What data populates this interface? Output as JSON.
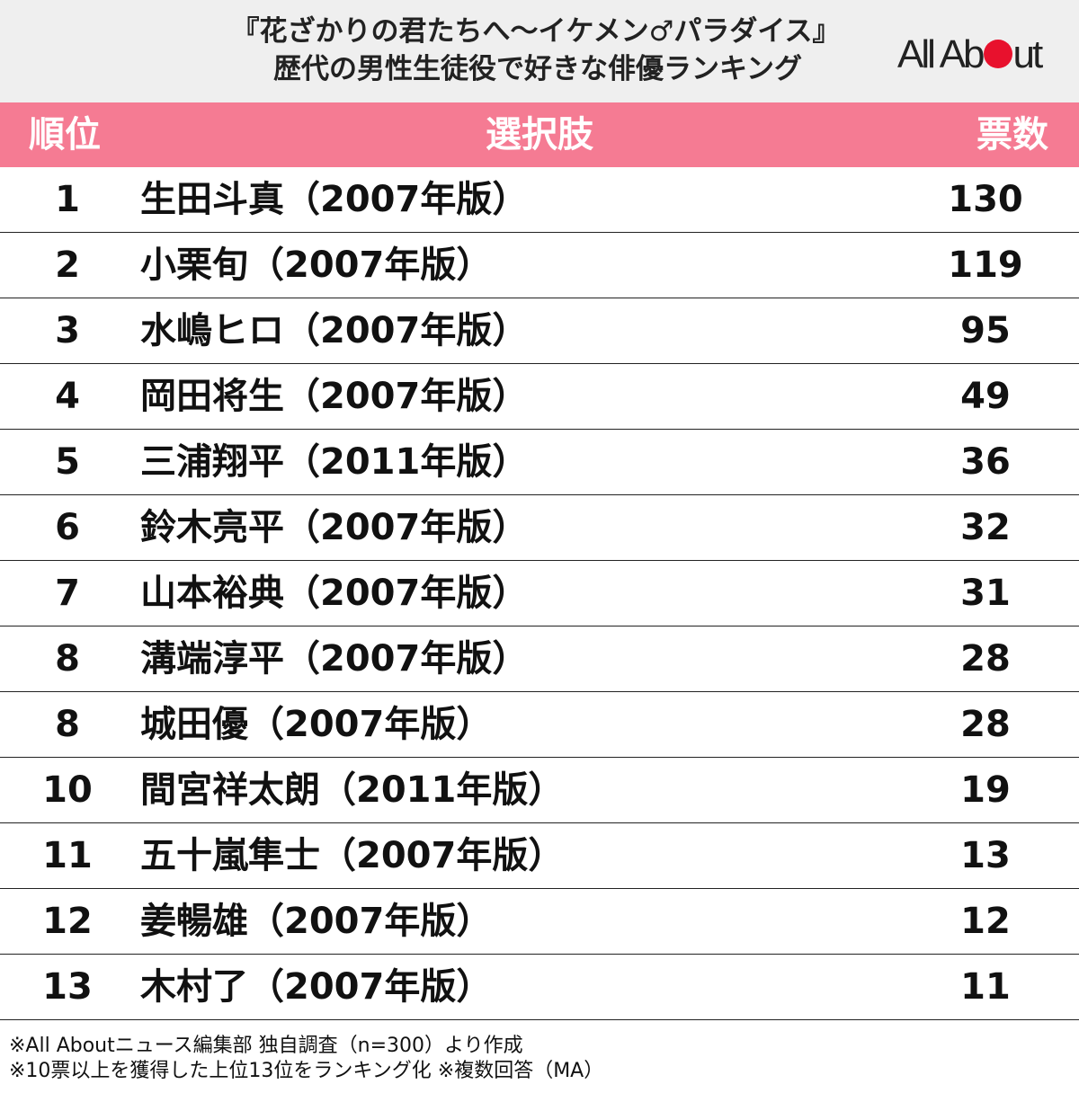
{
  "header": {
    "title_line1": "『花ざかりの君たちへ〜イケメン♂パラダイス』",
    "title_line2": "歴代の男性生徒役で好きな俳優ランキング",
    "logo_left": "All Ab",
    "logo_right": "ut"
  },
  "colors": {
    "header_bg": "#efefef",
    "table_header_bg": "#f57b93",
    "logo_dot": "#e8112d"
  },
  "chart_data": {
    "type": "table",
    "columns": [
      "順位",
      "選択肢",
      "票数"
    ],
    "rows": [
      {
        "rank": "1",
        "choice": "生田斗真（2007年版）",
        "votes": "130"
      },
      {
        "rank": "2",
        "choice": "小栗旬（2007年版）",
        "votes": "119"
      },
      {
        "rank": "3",
        "choice": "水嶋ヒロ（2007年版）",
        "votes": "95"
      },
      {
        "rank": "4",
        "choice": "岡田将生（2007年版）",
        "votes": "49"
      },
      {
        "rank": "5",
        "choice": "三浦翔平（2011年版）",
        "votes": "36"
      },
      {
        "rank": "6",
        "choice": "鈴木亮平（2007年版）",
        "votes": "32"
      },
      {
        "rank": "7",
        "choice": "山本裕典（2007年版）",
        "votes": "31"
      },
      {
        "rank": "8",
        "choice": "溝端淳平（2007年版）",
        "votes": "28"
      },
      {
        "rank": "8",
        "choice": "城田優（2007年版）",
        "votes": "28"
      },
      {
        "rank": "10",
        "choice": "間宮祥太朗（2011年版）",
        "votes": "19"
      },
      {
        "rank": "11",
        "choice": "五十嵐隼士（2007年版）",
        "votes": "13"
      },
      {
        "rank": "12",
        "choice": "姜暢雄（2007年版）",
        "votes": "12"
      },
      {
        "rank": "13",
        "choice": "木村了（2007年版）",
        "votes": "11"
      }
    ]
  },
  "footer": {
    "note1": "※All Aboutニュース編集部 独自調査（n=300）より作成",
    "note2": "※10票以上を獲得した上位13位をランキング化 ※複数回答（MA）"
  }
}
